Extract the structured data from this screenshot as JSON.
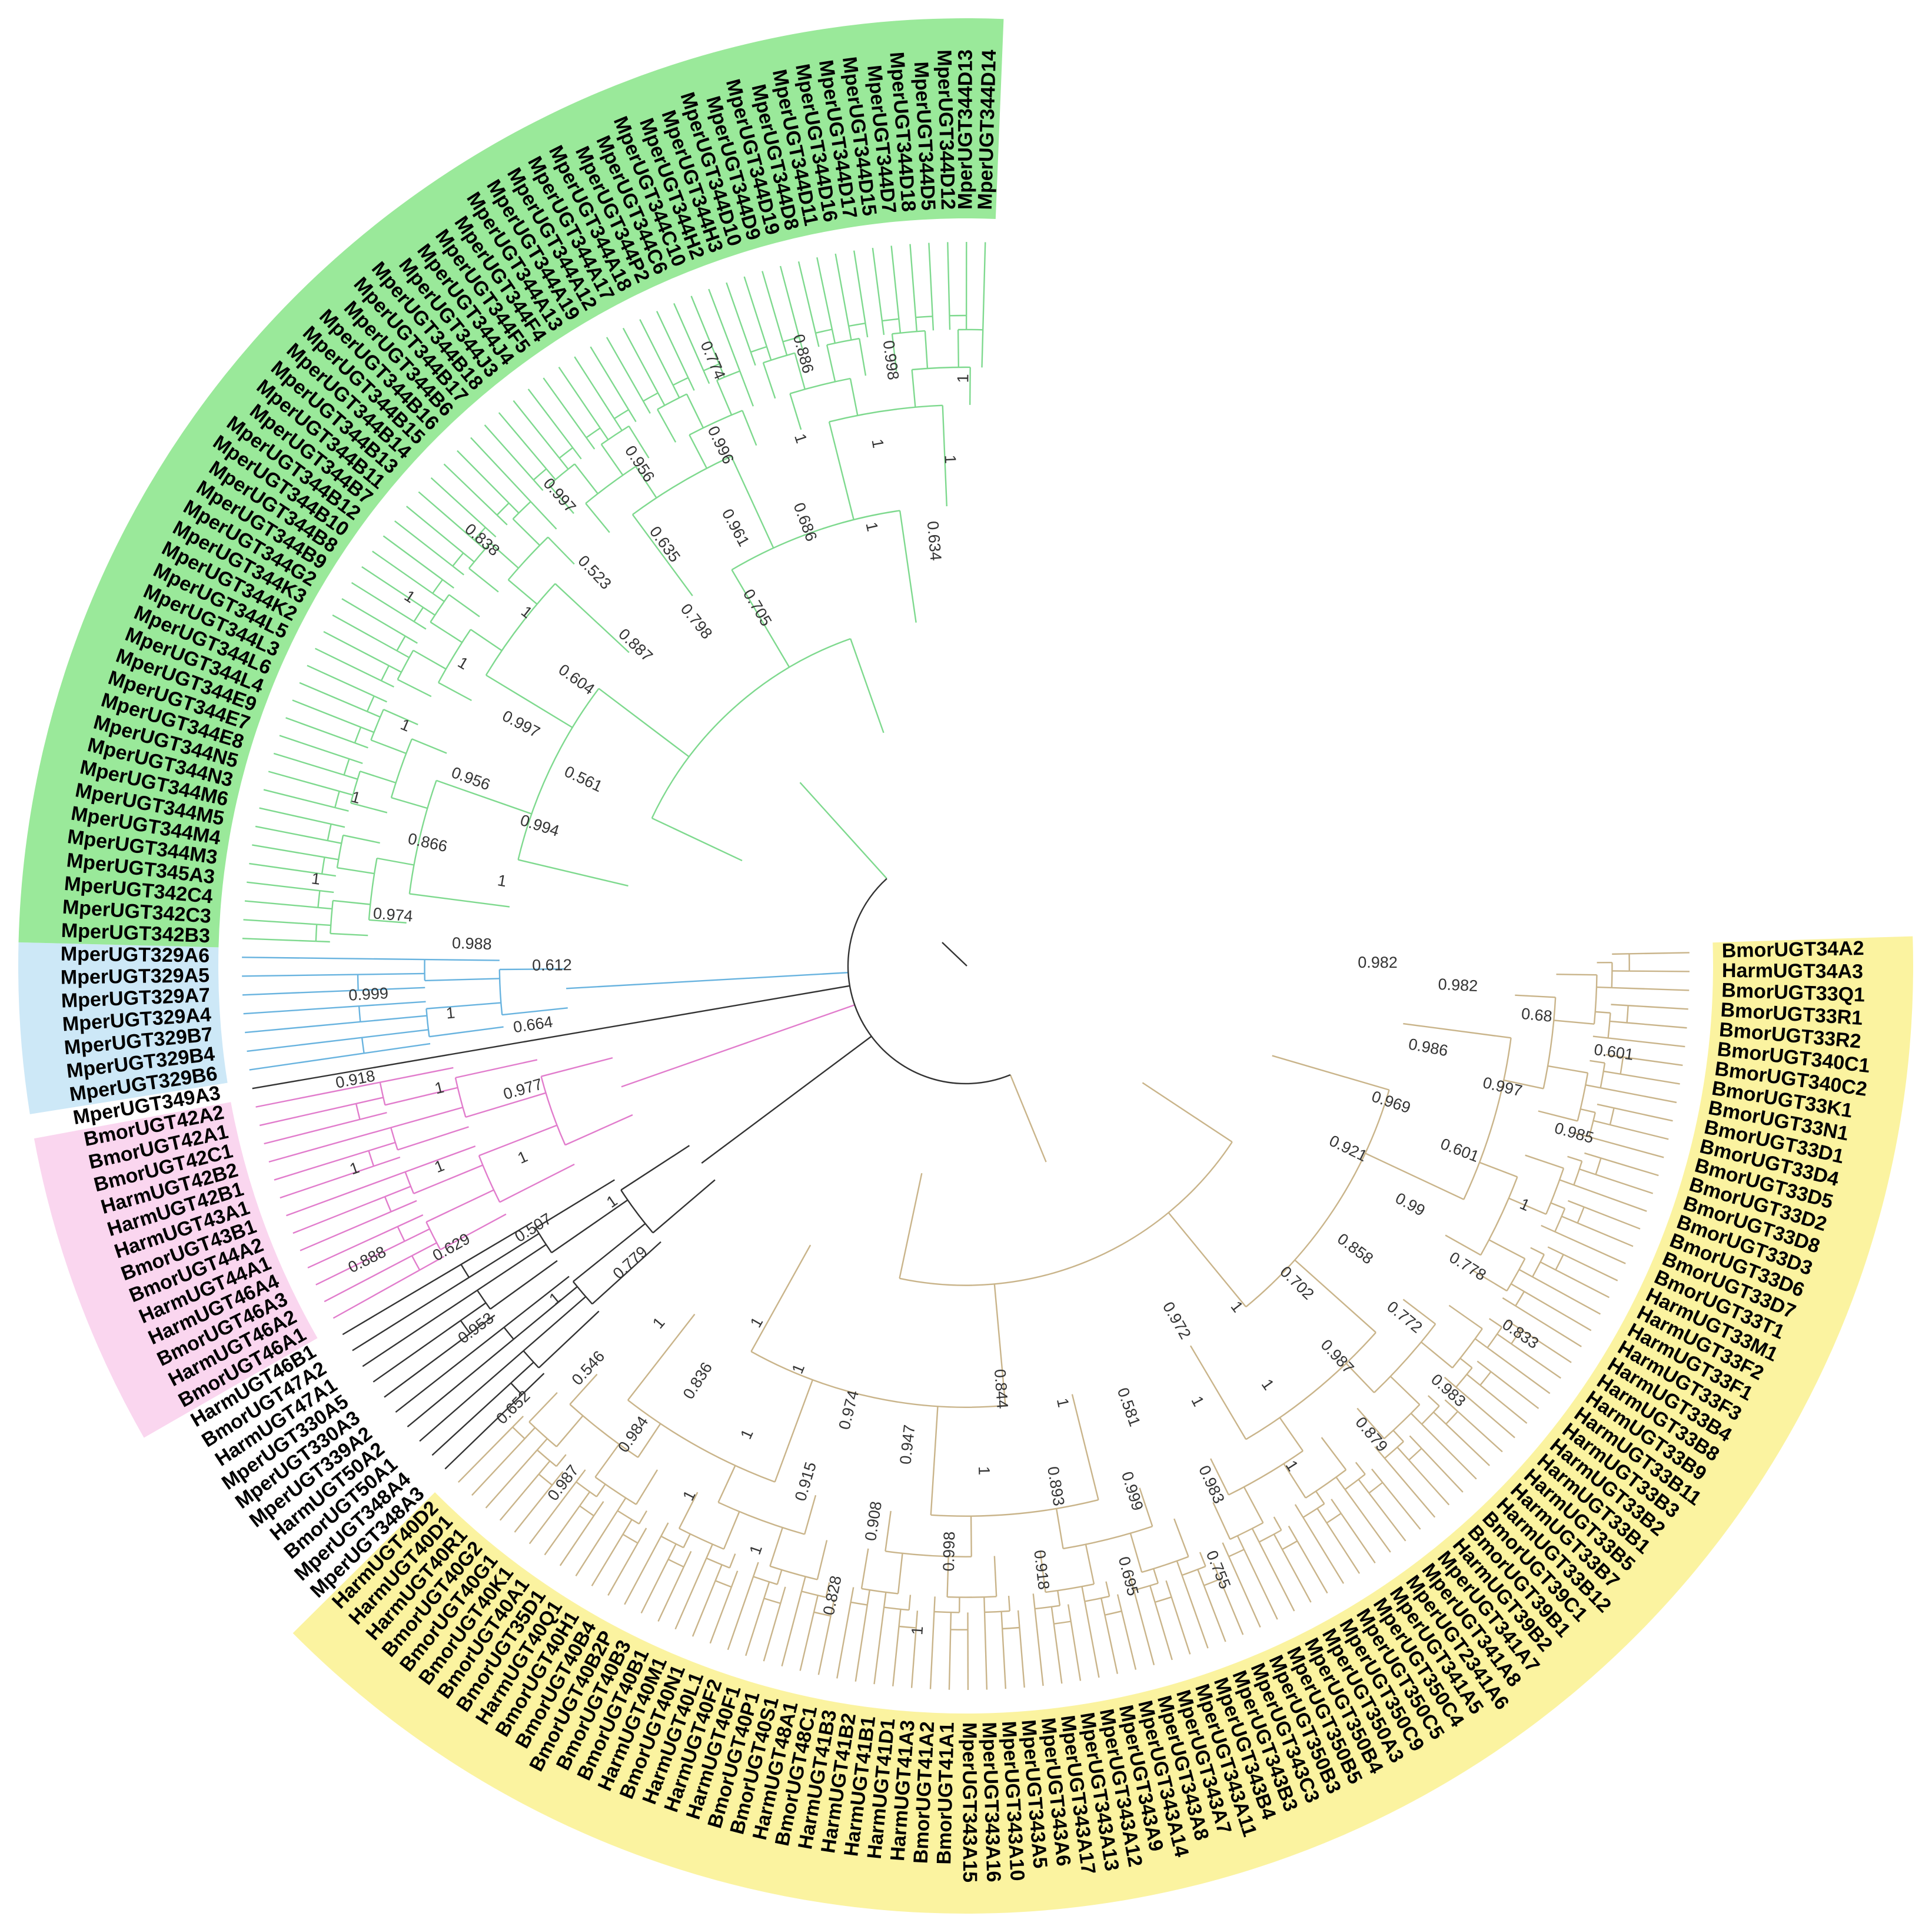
{
  "colors": {
    "background": "#ffffff",
    "clade_yellow_fill": "#fbf3a0",
    "clade_green_fill": "#9ae99a",
    "clade_blue_fill": "#cde8f7",
    "clade_pink_fill": "#fad6ef",
    "branch_yellow": "#c9b48a",
    "branch_green": "#7ed98e",
    "branch_blue": "#68b3df",
    "branch_pink": "#e17ccc",
    "branch_gray": "#333333",
    "label_text": "#000000",
    "support_text": "#333333"
  },
  "clades": [
    {
      "key": "yellow",
      "leaves": [
        "BmorUGT34A2",
        "HarmUGT34A3",
        "BmorUGT33Q1",
        "BmorUGT33R1",
        "BmorUGT33R2",
        "BmorUGT340C1",
        "BmorUGT340C2",
        "BmorUGT33K1",
        "BmorUGT33N1",
        "BmorUGT33D1",
        "BmorUGT33D4",
        "BmorUGT33D5",
        "BmorUGT33D2",
        "BmorUGT33D8",
        "BmorUGT33D3",
        "BmorUGT33D6",
        "BmorUGT33D7",
        "BmorUGT33T1",
        "HarmUGT33M1",
        "HarmUGT33F2",
        "HarmUGT33F1",
        "HarmUGT33F3",
        "HarmUGT33B4",
        "HarmUGT33B8",
        "HarmUGT33B9",
        "HarmUGT33B11",
        "HarmUGT33B3",
        "HarmUGT33B2",
        "HarmUGT33B1",
        "HarmUGT33B5",
        "HarmUGT33B7",
        "HarmUGT33B12",
        "BmorUGT39C1",
        "BmorUGT39B1",
        "HarmUGT39B2",
        "MperUGT341A7",
        "MperUGT341A8",
        "MperUGT2341A6",
        "MperUGT341A5",
        "MperUGT350C4",
        "MperUGT350C5",
        "MperUGT350C9",
        "MperUGT350A3",
        "MperUGT350B4",
        "MperUGT350B5",
        "MperUGT350B3",
        "MperUGT343C3",
        "MperUGT343B3",
        "MperUGT343B4",
        "MperUGT343A11",
        "MperUGT343A7",
        "MperUGT343A8",
        "MperUGT343A14",
        "MperUGT343A9",
        "MperUGT343A12",
        "MperUGT343A13",
        "MperUGT343A17",
        "MperUGT343A6",
        "MperUGT343A5",
        "MperUGT343A10",
        "MperUGT343A16",
        "MperUGT343A15",
        "BmorUGT41A1",
        "BmorUGT41A2",
        "HarmUGT41A3",
        "HarmUGT41D1",
        "HarmUGT41B1",
        "HarmUGT41B2",
        "HarmUGT41B3",
        "BmorUGT48C1",
        "HarmUGT48A1",
        "BmorUGT40S1",
        "BmorUGT40P1",
        "HarmUGT40F1",
        "HarmUGT40F2",
        "HarmUGT40L1",
        "BmorUGT40N1",
        "HarmUGT40M1",
        "BmorUGT40B1",
        "BmorUGT40B3",
        "BmorUGT40B2P",
        "BmorUGT40B4",
        "BmorUGT40H1",
        "HarmUGT40Q1",
        "BmorUGT35D1",
        "BmorUGT40A1",
        "BmorUGT40K1",
        "BmorUGT40G1",
        "BmorUGT40G2",
        "HarmUGT40R1",
        "HarmUGT40D1",
        "HarmUGT40D2"
      ]
    },
    {
      "key": "none",
      "leaves": [
        "MperUGT348A3",
        "MperUGT348A4",
        "BmorUGT50A1",
        "HarmUGT50A2",
        "MperUGT339A2",
        "MperUGT330A3",
        "MperUGT330A5",
        "HarmUGT47A1",
        "BmorUGT47A2",
        "HarmUGT46B1"
      ]
    },
    {
      "key": "pink",
      "leaves": [
        "BmorUGT46A1",
        "HarmUGT46A2",
        "BmorUGT46A3",
        "HarmUGT46A4",
        "HarmUGT44A1",
        "BmorUGT44A2",
        "BmorUGT43B1",
        "HarmUGT43A1",
        "HarmUGT42B1",
        "HarmUGT42B2",
        "BmorUGT42C1",
        "BmorUGT42A1",
        "BmorUGT42A2"
      ]
    },
    {
      "key": "none",
      "leaves": [
        "MperUGT349A3"
      ]
    },
    {
      "key": "blue",
      "leaves": [
        "MperUGT329B6",
        "MperUGT329B4",
        "MperUGT329B7",
        "MperUGT329A4",
        "MperUGT329A7",
        "MperUGT329A5",
        "MperUGT329A6"
      ]
    },
    {
      "key": "green",
      "leaves": [
        "MperUGT342B3",
        "MperUGT342C3",
        "MperUGT342C4",
        "MperUGT345A3",
        "MperUGT344M3",
        "MperUGT344M4",
        "MperUGT344M5",
        "MperUGT344M6",
        "MperUGT344N3",
        "MperUGT344N5",
        "MperUGT344E8",
        "MperUGT344E7",
        "MperUGT344E9",
        "MperUGT344L4",
        "MperUGT344L6",
        "MperUGT344L3",
        "MperUGT344L5",
        "MperUGT344K2",
        "MperUGT344K3",
        "MperUGT344G2",
        "MperUGT344B9",
        "MperUGT344B8",
        "MperUGT344B10",
        "MperUGT344B12",
        "MperUGT344B7",
        "MperUGT344B11",
        "MperUGT344B13",
        "MperUGT344B14",
        "MperUGT344B15",
        "MperUGT344B16",
        "MperUGT344B6",
        "MperUGT344B17",
        "MperUGT344B18",
        "MperUGT344J3",
        "MperUGT344J4",
        "MperUGT344F5",
        "MperUGT344F4",
        "MperUGT344A13",
        "MperUGT344A19",
        "MperUGT344A12",
        "MperUGT344A17",
        "MperUGT344A18",
        "MperUGT344P2",
        "MperUGT344C6",
        "MperUGT344C10",
        "MperUGT344H2",
        "MperUGT344H3",
        "MperUGT344D10",
        "MperUGT344D9",
        "MperUGT344D19",
        "MperUGT344D8",
        "MperUGT344D11",
        "MperUGT344D16",
        "MperUGT344D17",
        "MperUGT344D15",
        "MperUGT344D7",
        "MperUGT344D18",
        "MperUGT344D5",
        "MperUGT344D12",
        "MperUGT344D13",
        "MperUGT344D14"
      ]
    }
  ],
  "support_values": [
    "0.982",
    "0.982",
    "0.68",
    "0.601",
    "0.986",
    "0.997",
    "0.985",
    "0.969",
    "0.601",
    "1",
    "0.921",
    "0.99",
    "0.778",
    "0.833",
    "0.858",
    "0.772",
    "0.983",
    "0.702",
    "0.987",
    "0.879",
    "1",
    "1",
    "1",
    "0.972",
    "1",
    "0.983",
    "0.755",
    "0.581",
    "0.999",
    "0.695",
    "1",
    "0.893",
    "0.918",
    "0.844",
    "1",
    "0.998",
    "1",
    "0.947",
    "0.908",
    "0.828",
    "0.974",
    "0.915",
    "1",
    "1",
    "1",
    "1",
    "1",
    "0.836",
    "0.984",
    "0.987",
    "1",
    "0.546",
    "0.652",
    "0.779",
    "1",
    "0.953",
    "1",
    "0.507",
    "0.629",
    "0.888",
    "1",
    "1",
    "1",
    "0.977",
    "1",
    "0.918",
    "0.664",
    "1",
    "0.999",
    "0.612",
    "0.988",
    "0.974",
    "1",
    "1",
    "0.866",
    "1",
    "0.994",
    "0.956",
    "1",
    "0.561",
    "0.997",
    "1",
    "1",
    "0.604",
    "1",
    "0.838",
    "0.887",
    "0.523",
    "0.997",
    "0.798",
    "0.635",
    "0.956",
    "0.705",
    "0.961",
    "0.996",
    "0.774",
    "0.686",
    "1",
    "0.886",
    "1",
    "1",
    "0.998",
    "0.634",
    "1",
    "1"
  ]
}
